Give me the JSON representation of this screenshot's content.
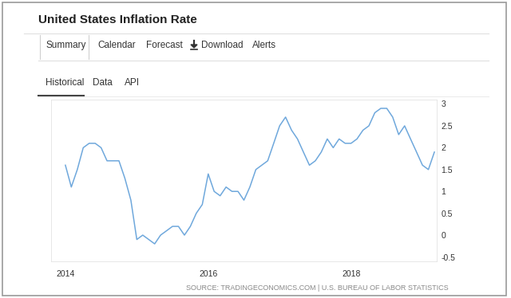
{
  "page": {
    "title": "United States Inflation Rate",
    "tabs": [
      "Summary",
      "Calendar",
      "Forecast",
      "Download",
      "Alerts"
    ],
    "views": [
      "Historical",
      "Data",
      "API"
    ],
    "source": "SOURCE: TRADINGECONOMICS.COM | U.S. BUREAU OF LABOR STATISTICS"
  },
  "chart_data": {
    "type": "line",
    "x": [
      2014.0,
      2014.083,
      2014.167,
      2014.25,
      2014.333,
      2014.417,
      2014.5,
      2014.583,
      2014.667,
      2014.75,
      2014.833,
      2014.917,
      2015.0,
      2015.083,
      2015.167,
      2015.25,
      2015.333,
      2015.417,
      2015.5,
      2015.583,
      2015.667,
      2015.75,
      2015.833,
      2015.917,
      2016.0,
      2016.083,
      2016.167,
      2016.25,
      2016.333,
      2016.417,
      2016.5,
      2016.583,
      2016.667,
      2016.75,
      2016.833,
      2016.917,
      2017.0,
      2017.083,
      2017.167,
      2017.25,
      2017.333,
      2017.417,
      2017.5,
      2017.583,
      2017.667,
      2017.75,
      2017.833,
      2017.917,
      2018.0,
      2018.083,
      2018.167,
      2018.25,
      2018.333,
      2018.417,
      2018.5,
      2018.583,
      2018.667,
      2018.75,
      2018.833,
      2018.917,
      2019.0,
      2019.083,
      2019.167
    ],
    "values": [
      1.6,
      1.1,
      1.5,
      2.0,
      2.1,
      2.1,
      2.0,
      1.7,
      1.7,
      1.7,
      1.3,
      0.8,
      -0.1,
      0.0,
      -0.1,
      -0.2,
      0.0,
      0.1,
      0.2,
      0.2,
      0.0,
      0.2,
      0.5,
      0.7,
      1.4,
      1.0,
      0.9,
      1.1,
      1.0,
      1.0,
      0.8,
      1.1,
      1.5,
      1.6,
      1.7,
      2.1,
      2.5,
      2.7,
      2.4,
      2.2,
      1.9,
      1.6,
      1.7,
      1.9,
      2.2,
      2.0,
      2.2,
      2.1,
      2.1,
      2.2,
      2.4,
      2.5,
      2.8,
      2.9,
      2.9,
      2.7,
      2.3,
      2.5,
      2.2,
      1.9,
      1.6,
      1.5,
      1.9
    ],
    "color": "#6fa8dc",
    "xlim": [
      2013.8,
      2019.2
    ],
    "xticks": [
      2014,
      2016,
      2018
    ],
    "ylim": [
      -0.6,
      3.1
    ],
    "yticks": [
      3,
      2.5,
      2,
      1.5,
      1,
      0.5,
      0,
      -0.5
    ],
    "grid": false
  }
}
